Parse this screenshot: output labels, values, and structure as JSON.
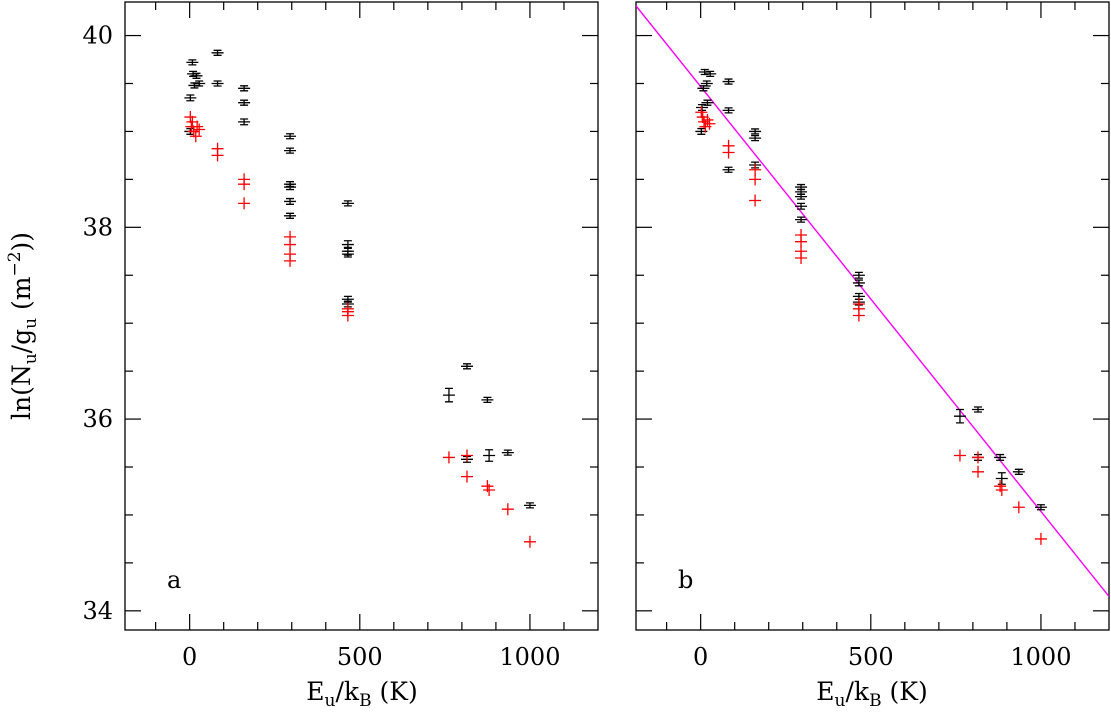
{
  "figure": {
    "ylabel": "ln(N_u/g_u (m^-2))",
    "xlabel": "E_u/k_B (K)"
  },
  "chart_data": [
    {
      "type": "scatter",
      "panel_label": "a",
      "xlim": [
        -190,
        1200
      ],
      "ylim": [
        33.8,
        40.35
      ],
      "x_ticks": [
        0,
        500,
        1000
      ],
      "y_ticks": [
        34,
        36,
        38,
        40
      ],
      "grid": false,
      "series": [
        {
          "color": "#000000",
          "marker": "cross-with-errorbars",
          "points": [
            {
              "x": 2,
              "y": 39.0,
              "err": 0.03
            },
            {
              "x": 2,
              "y": 39.35,
              "err": 0.03
            },
            {
              "x": 8,
              "y": 39.72,
              "err": 0.02
            },
            {
              "x": 10,
              "y": 39.6,
              "err": 0.02
            },
            {
              "x": 14,
              "y": 39.48,
              "err": 0.02
            },
            {
              "x": 20,
              "y": 39.58,
              "err": 0.02
            },
            {
              "x": 28,
              "y": 39.5,
              "err": 0.02
            },
            {
              "x": 82,
              "y": 39.82,
              "err": 0.02
            },
            {
              "x": 82,
              "y": 39.5,
              "err": 0.02
            },
            {
              "x": 160,
              "y": 39.45,
              "err": 0.02
            },
            {
              "x": 160,
              "y": 39.3,
              "err": 0.02
            },
            {
              "x": 160,
              "y": 39.1,
              "err": 0.03
            },
            {
              "x": 295,
              "y": 38.95,
              "err": 0.02
            },
            {
              "x": 295,
              "y": 38.8,
              "err": 0.02
            },
            {
              "x": 295,
              "y": 38.45,
              "err": 0.02
            },
            {
              "x": 295,
              "y": 38.42,
              "err": 0.02
            },
            {
              "x": 295,
              "y": 38.27,
              "err": 0.03
            },
            {
              "x": 295,
              "y": 38.12,
              "err": 0.02
            },
            {
              "x": 465,
              "y": 38.25,
              "err": 0.02
            },
            {
              "x": 465,
              "y": 37.82,
              "err": 0.04
            },
            {
              "x": 465,
              "y": 37.75,
              "err": 0.04
            },
            {
              "x": 465,
              "y": 37.72,
              "err": 0.03
            },
            {
              "x": 465,
              "y": 37.25,
              "err": 0.03
            },
            {
              "x": 465,
              "y": 37.2,
              "err": 0.03
            },
            {
              "x": 762,
              "y": 36.25,
              "err": 0.07
            },
            {
              "x": 815,
              "y": 36.55,
              "err": 0.02
            },
            {
              "x": 815,
              "y": 35.58,
              "err": 0.03
            },
            {
              "x": 875,
              "y": 36.2,
              "err": 0.02
            },
            {
              "x": 880,
              "y": 35.62,
              "err": 0.06
            },
            {
              "x": 935,
              "y": 35.65,
              "err": 0.02
            },
            {
              "x": 1000,
              "y": 35.1,
              "err": 0.02
            }
          ]
        },
        {
          "color": "#ff0000",
          "marker": "plus",
          "points": [
            {
              "x": 2,
              "y": 39.15
            },
            {
              "x": 5,
              "y": 39.05
            },
            {
              "x": 8,
              "y": 39.1
            },
            {
              "x": 12,
              "y": 39.0
            },
            {
              "x": 18,
              "y": 38.95
            },
            {
              "x": 22,
              "y": 39.05
            },
            {
              "x": 28,
              "y": 39.02
            },
            {
              "x": 82,
              "y": 38.82
            },
            {
              "x": 82,
              "y": 38.75
            },
            {
              "x": 160,
              "y": 38.5
            },
            {
              "x": 160,
              "y": 38.45
            },
            {
              "x": 160,
              "y": 38.25
            },
            {
              "x": 295,
              "y": 37.9
            },
            {
              "x": 295,
              "y": 37.82
            },
            {
              "x": 295,
              "y": 37.72
            },
            {
              "x": 295,
              "y": 37.65
            },
            {
              "x": 465,
              "y": 37.15
            },
            {
              "x": 465,
              "y": 37.12
            },
            {
              "x": 465,
              "y": 37.08
            },
            {
              "x": 762,
              "y": 35.6
            },
            {
              "x": 815,
              "y": 35.62
            },
            {
              "x": 815,
              "y": 35.4
            },
            {
              "x": 875,
              "y": 35.3
            },
            {
              "x": 880,
              "y": 35.26
            },
            {
              "x": 935,
              "y": 35.06
            },
            {
              "x": 1000,
              "y": 34.72
            }
          ]
        }
      ]
    },
    {
      "type": "scatter",
      "panel_label": "b",
      "xlim": [
        -190,
        1200
      ],
      "ylim": [
        33.8,
        40.35
      ],
      "x_ticks": [
        0,
        500,
        1000
      ],
      "y_ticks": [
        34,
        36,
        38,
        40
      ],
      "grid": false,
      "fit_line": {
        "color": "#ff00ff",
        "x1": -190,
        "y1": 40.31,
        "x2": 1200,
        "y2": 34.15
      },
      "series": [
        {
          "color": "#000000",
          "marker": "cross-with-errorbars",
          "points": [
            {
              "x": 2,
              "y": 39.0,
              "err": 0.03
            },
            {
              "x": 4,
              "y": 39.25,
              "err": 0.03
            },
            {
              "x": 8,
              "y": 39.45,
              "err": 0.02
            },
            {
              "x": 12,
              "y": 39.62,
              "err": 0.02
            },
            {
              "x": 18,
              "y": 39.5,
              "err": 0.02
            },
            {
              "x": 20,
              "y": 39.3,
              "err": 0.02
            },
            {
              "x": 28,
              "y": 39.6,
              "err": 0.02
            },
            {
              "x": 82,
              "y": 39.52,
              "err": 0.02
            },
            {
              "x": 82,
              "y": 39.22,
              "err": 0.02
            },
            {
              "x": 82,
              "y": 38.6,
              "err": 0.02
            },
            {
              "x": 160,
              "y": 39.0,
              "err": 0.02
            },
            {
              "x": 160,
              "y": 38.93,
              "err": 0.02
            },
            {
              "x": 160,
              "y": 38.65,
              "err": 0.03
            },
            {
              "x": 295,
              "y": 38.42,
              "err": 0.02
            },
            {
              "x": 295,
              "y": 38.37,
              "err": 0.02
            },
            {
              "x": 295,
              "y": 38.32,
              "err": 0.02
            },
            {
              "x": 295,
              "y": 38.22,
              "err": 0.03
            },
            {
              "x": 295,
              "y": 38.08,
              "err": 0.02
            },
            {
              "x": 465,
              "y": 37.5,
              "err": 0.03
            },
            {
              "x": 465,
              "y": 37.42,
              "err": 0.03
            },
            {
              "x": 465,
              "y": 37.28,
              "err": 0.03
            },
            {
              "x": 465,
              "y": 37.22,
              "err": 0.03
            },
            {
              "x": 762,
              "y": 36.03,
              "err": 0.07
            },
            {
              "x": 815,
              "y": 36.1,
              "err": 0.02
            },
            {
              "x": 815,
              "y": 35.6,
              "err": 0.03
            },
            {
              "x": 880,
              "y": 35.6,
              "err": 0.03
            },
            {
              "x": 885,
              "y": 35.38,
              "err": 0.06
            },
            {
              "x": 935,
              "y": 35.45,
              "err": 0.02
            },
            {
              "x": 1000,
              "y": 35.08,
              "err": 0.02
            }
          ]
        },
        {
          "color": "#ff0000",
          "marker": "plus",
          "points": [
            {
              "x": 2,
              "y": 39.2
            },
            {
              "x": 6,
              "y": 39.15
            },
            {
              "x": 10,
              "y": 39.1
            },
            {
              "x": 14,
              "y": 39.05
            },
            {
              "x": 20,
              "y": 39.12
            },
            {
              "x": 26,
              "y": 39.08
            },
            {
              "x": 82,
              "y": 38.85
            },
            {
              "x": 82,
              "y": 38.78
            },
            {
              "x": 160,
              "y": 38.6
            },
            {
              "x": 160,
              "y": 38.5
            },
            {
              "x": 160,
              "y": 38.28
            },
            {
              "x": 295,
              "y": 37.92
            },
            {
              "x": 295,
              "y": 37.85
            },
            {
              "x": 295,
              "y": 37.75
            },
            {
              "x": 295,
              "y": 37.68
            },
            {
              "x": 465,
              "y": 37.2
            },
            {
              "x": 465,
              "y": 37.15
            },
            {
              "x": 465,
              "y": 37.08
            },
            {
              "x": 762,
              "y": 35.62
            },
            {
              "x": 815,
              "y": 35.6
            },
            {
              "x": 815,
              "y": 35.45
            },
            {
              "x": 880,
              "y": 35.3
            },
            {
              "x": 885,
              "y": 35.26
            },
            {
              "x": 935,
              "y": 35.08
            },
            {
              "x": 1000,
              "y": 34.75
            }
          ]
        }
      ]
    }
  ]
}
